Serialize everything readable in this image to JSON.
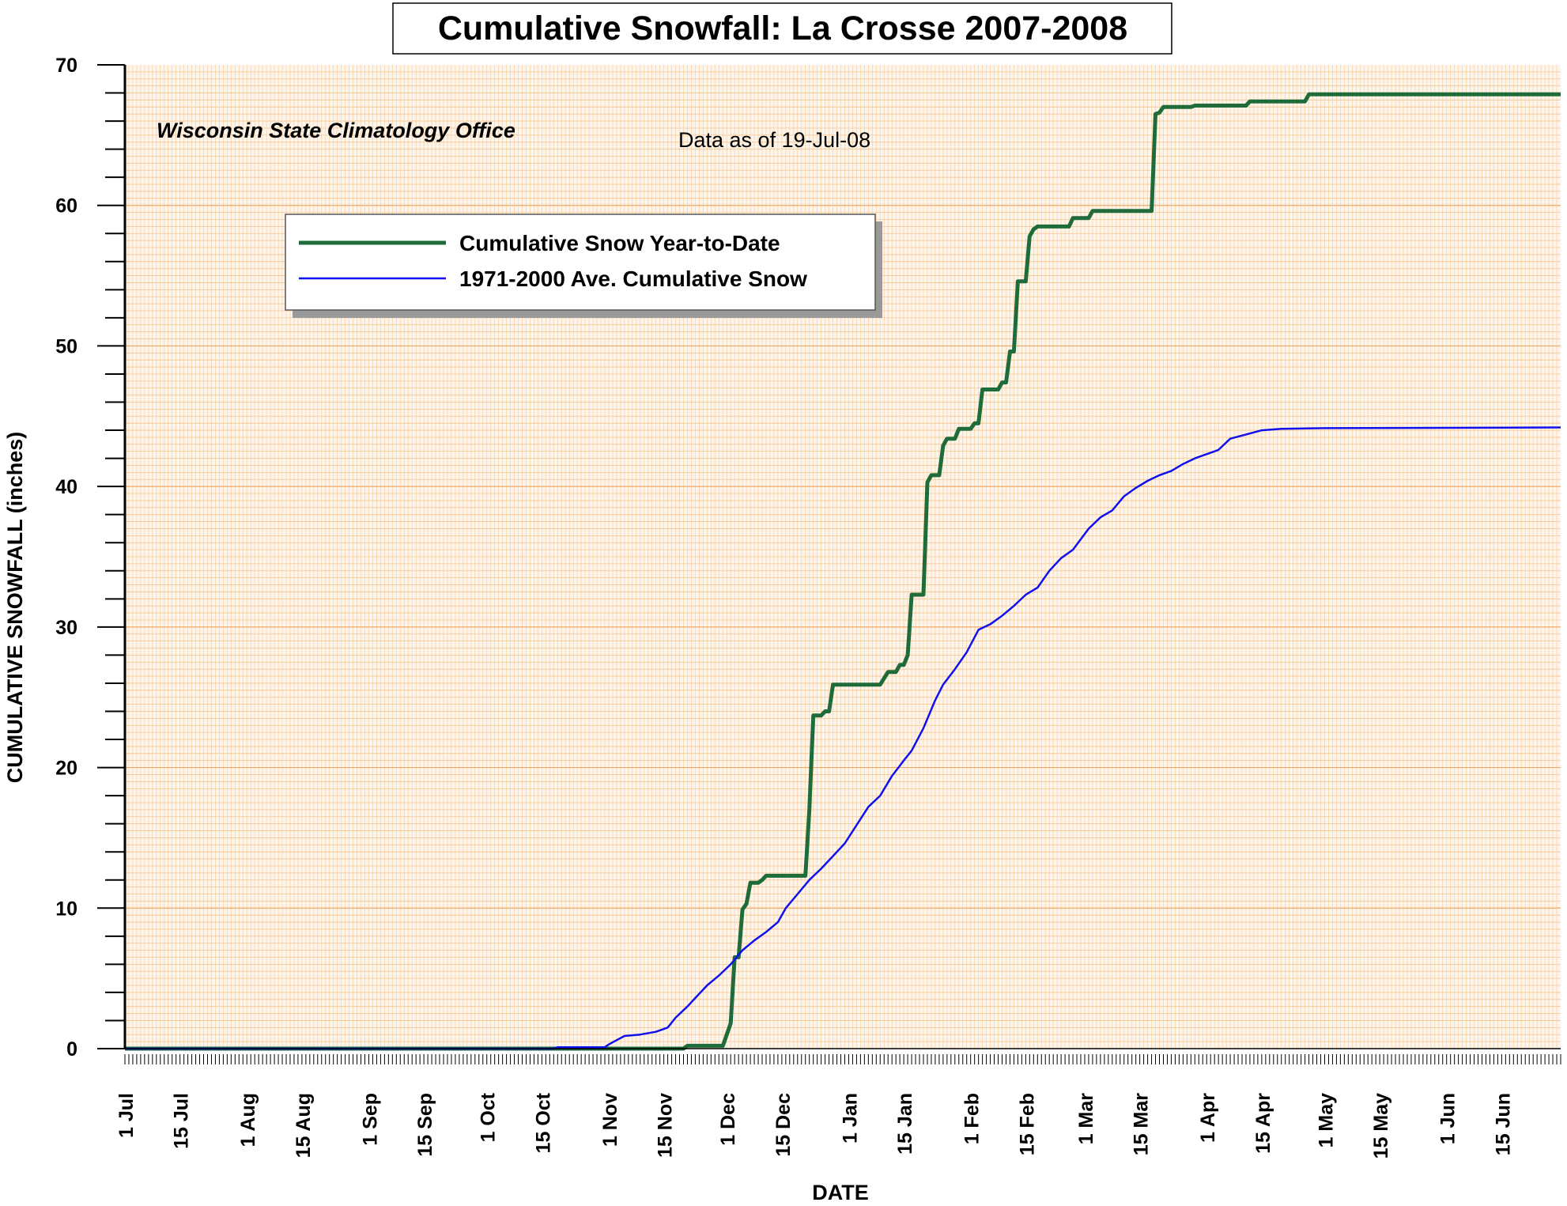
{
  "chart_data": {
    "type": "line",
    "title": "Cumulative Snowfall: La Crosse 2007-2008",
    "xlabel": "DATE",
    "ylabel": "CUMULATIVE SNOWFALL (inches)",
    "ylim": [
      0,
      70
    ],
    "yticks": [
      0,
      10,
      20,
      30,
      40,
      50,
      60,
      70
    ],
    "xlim": [
      "2007-07-01",
      "2008-06-30"
    ],
    "x_tick_dates": [
      "2007-07-01",
      "2007-07-15",
      "2007-08-01",
      "2007-08-15",
      "2007-09-01",
      "2007-09-15",
      "2007-10-01",
      "2007-10-15",
      "2007-11-01",
      "2007-11-15",
      "2007-12-01",
      "2007-12-15",
      "2008-01-01",
      "2008-01-15",
      "2008-02-01",
      "2008-02-15",
      "2008-03-01",
      "2008-03-15",
      "2008-04-01",
      "2008-04-15",
      "2008-05-01",
      "2008-05-15",
      "2008-06-01",
      "2008-06-15"
    ],
    "x_tick_labels": [
      "1 Jul",
      "15 Jul",
      "1 Aug",
      "15 Aug",
      "1 Sep",
      "15 Sep",
      "1 Oct",
      "15 Oct",
      "1 Nov",
      "15 Nov",
      "1 Dec",
      "15 Dec",
      "1 Jan",
      "15 Jan",
      "1 Feb",
      "15 Feb",
      "1 Mar",
      "15 Mar",
      "1 Apr",
      "15 Apr",
      "1 May",
      "15 May",
      "1 Jun",
      "15 Jun"
    ],
    "grid": true,
    "legend_position": "upper-left",
    "annotations": [
      "Wisconsin State Climatology Office",
      "Data as of 19-Jul-08"
    ],
    "series": [
      {
        "name": "Cumulative Snow Year-to-Date",
        "color": "#1f6b3a",
        "step": true,
        "points": [
          [
            "2007-07-01",
            0
          ],
          [
            "2007-11-20",
            0
          ],
          [
            "2007-11-21",
            0.2
          ],
          [
            "2007-11-30",
            0.2
          ],
          [
            "2007-12-02",
            1.8
          ],
          [
            "2007-12-03",
            6.5
          ],
          [
            "2007-12-04",
            6.5
          ],
          [
            "2007-12-05",
            9.9
          ],
          [
            "2007-12-06",
            10.3
          ],
          [
            "2007-12-07",
            11.8
          ],
          [
            "2007-12-09",
            11.8
          ],
          [
            "2007-12-10",
            12.0
          ],
          [
            "2007-12-11",
            12.3
          ],
          [
            "2007-12-21",
            12.3
          ],
          [
            "2007-12-22",
            17.0
          ],
          [
            "2007-12-23",
            23.7
          ],
          [
            "2007-12-25",
            23.7
          ],
          [
            "2007-12-26",
            24.0
          ],
          [
            "2007-12-27",
            24.0
          ],
          [
            "2007-12-28",
            25.9
          ],
          [
            "2008-01-09",
            25.9
          ],
          [
            "2008-01-11",
            26.8
          ],
          [
            "2008-01-13",
            26.8
          ],
          [
            "2008-01-14",
            27.3
          ],
          [
            "2008-01-15",
            27.3
          ],
          [
            "2008-01-16",
            28.0
          ],
          [
            "2008-01-17",
            32.3
          ],
          [
            "2008-01-20",
            32.3
          ],
          [
            "2008-01-21",
            40.3
          ],
          [
            "2008-01-22",
            40.8
          ],
          [
            "2008-01-24",
            40.8
          ],
          [
            "2008-01-25",
            42.9
          ],
          [
            "2008-01-26",
            43.4
          ],
          [
            "2008-01-28",
            43.4
          ],
          [
            "2008-01-29",
            44.1
          ],
          [
            "2008-02-01",
            44.1
          ],
          [
            "2008-02-02",
            44.5
          ],
          [
            "2008-02-03",
            44.5
          ],
          [
            "2008-02-04",
            46.9
          ],
          [
            "2008-02-08",
            46.9
          ],
          [
            "2008-02-09",
            47.4
          ],
          [
            "2008-02-10",
            47.4
          ],
          [
            "2008-02-11",
            49.6
          ],
          [
            "2008-02-12",
            49.6
          ],
          [
            "2008-02-13",
            54.6
          ],
          [
            "2008-02-15",
            54.6
          ],
          [
            "2008-02-16",
            57.8
          ],
          [
            "2008-02-17",
            58.3
          ],
          [
            "2008-02-18",
            58.5
          ],
          [
            "2008-02-26",
            58.5
          ],
          [
            "2008-02-27",
            59.1
          ],
          [
            "2008-03-02",
            59.1
          ],
          [
            "2008-03-03",
            59.6
          ],
          [
            "2008-03-18",
            59.6
          ],
          [
            "2008-03-19",
            66.5
          ],
          [
            "2008-03-20",
            66.6
          ],
          [
            "2008-03-21",
            67.0
          ],
          [
            "2008-03-28",
            67.0
          ],
          [
            "2008-03-29",
            67.1
          ],
          [
            "2008-04-11",
            67.1
          ],
          [
            "2008-04-12",
            67.4
          ],
          [
            "2008-04-26",
            67.4
          ],
          [
            "2008-04-27",
            67.9
          ],
          [
            "2008-06-30",
            67.9
          ]
        ]
      },
      {
        "name": "1971-2000 Ave. Cumulative Snow",
        "color": "#1010ee",
        "step": false,
        "points": [
          [
            "2007-07-01",
            0
          ],
          [
            "2007-10-18",
            0
          ],
          [
            "2007-10-19",
            0.1
          ],
          [
            "2007-10-31",
            0.1
          ],
          [
            "2007-11-01",
            0.3
          ],
          [
            "2007-11-03",
            0.6
          ],
          [
            "2007-11-05",
            0.9
          ],
          [
            "2007-11-09",
            1.0
          ],
          [
            "2007-11-13",
            1.2
          ],
          [
            "2007-11-16",
            1.5
          ],
          [
            "2007-11-18",
            2.2
          ],
          [
            "2007-11-21",
            3.0
          ],
          [
            "2007-11-23",
            3.6
          ],
          [
            "2007-11-26",
            4.5
          ],
          [
            "2007-11-29",
            5.2
          ],
          [
            "2007-12-02",
            6.0
          ],
          [
            "2007-12-05",
            7.0
          ],
          [
            "2007-12-08",
            7.7
          ],
          [
            "2007-12-11",
            8.3
          ],
          [
            "2007-12-14",
            9.0
          ],
          [
            "2007-12-16",
            10.0
          ],
          [
            "2007-12-19",
            11.0
          ],
          [
            "2007-12-22",
            12.0
          ],
          [
            "2007-12-25",
            12.8
          ],
          [
            "2007-12-28",
            13.7
          ],
          [
            "2007-12-31",
            14.6
          ],
          [
            "2008-01-03",
            15.9
          ],
          [
            "2008-01-06",
            17.2
          ],
          [
            "2008-01-09",
            18.0
          ],
          [
            "2008-01-12",
            19.4
          ],
          [
            "2008-01-15",
            20.5
          ],
          [
            "2008-01-17",
            21.2
          ],
          [
            "2008-01-20",
            22.8
          ],
          [
            "2008-01-23",
            24.8
          ],
          [
            "2008-01-25",
            25.9
          ],
          [
            "2008-01-28",
            27.0
          ],
          [
            "2008-01-31",
            28.2
          ],
          [
            "2008-02-03",
            29.8
          ],
          [
            "2008-02-06",
            30.2
          ],
          [
            "2008-02-09",
            30.8
          ],
          [
            "2008-02-12",
            31.5
          ],
          [
            "2008-02-15",
            32.3
          ],
          [
            "2008-02-18",
            32.8
          ],
          [
            "2008-02-21",
            34.0
          ],
          [
            "2008-02-24",
            34.9
          ],
          [
            "2008-02-27",
            35.5
          ],
          [
            "2008-03-02",
            37.0
          ],
          [
            "2008-03-05",
            37.8
          ],
          [
            "2008-03-08",
            38.3
          ],
          [
            "2008-03-11",
            39.3
          ],
          [
            "2008-03-14",
            39.9
          ],
          [
            "2008-03-17",
            40.4
          ],
          [
            "2008-03-20",
            40.8
          ],
          [
            "2008-03-23",
            41.1
          ],
          [
            "2008-03-26",
            41.6
          ],
          [
            "2008-03-29",
            42.0
          ],
          [
            "2008-04-01",
            42.3
          ],
          [
            "2008-04-04",
            42.6
          ],
          [
            "2008-04-07",
            43.4
          ],
          [
            "2008-04-11",
            43.7
          ],
          [
            "2008-04-15",
            44.0
          ],
          [
            "2008-04-20",
            44.1
          ],
          [
            "2008-05-01",
            44.15
          ],
          [
            "2008-06-30",
            44.2
          ]
        ]
      }
    ]
  }
}
